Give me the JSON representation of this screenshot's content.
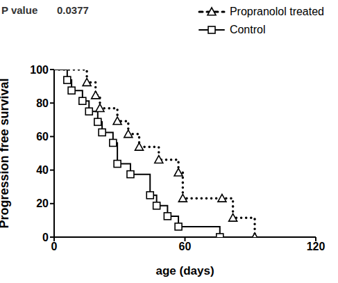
{
  "chart_data": {
    "type": "line",
    "annotations": [
      "P value",
      "0.0377"
    ],
    "x_label": "age (days)",
    "y_label": "Progression free survival",
    "xlim": [
      0,
      120
    ],
    "xticks": [
      0,
      60,
      120
    ],
    "ylim": [
      0,
      100
    ],
    "yticks": [
      0,
      20,
      40,
      60,
      80,
      100
    ],
    "legend": "upper right",
    "series": [
      {
        "name": "Propranolol treated",
        "color": "#000000",
        "marker": "triangle",
        "line_style": "dotted",
        "x": [
          0,
          15,
          19,
          21,
          29,
          34,
          39,
          48,
          57,
          59,
          77,
          82,
          92
        ],
        "values": [
          100,
          92.3,
          84.6,
          76.9,
          69.2,
          61.5,
          53.8,
          46.2,
          38.5,
          23.1,
          23.1,
          11.5,
          0
        ]
      },
      {
        "name": "Control",
        "color": "#000000",
        "marker": "square",
        "line_style": "solid",
        "x": [
          0,
          6,
          8,
          13,
          16,
          20,
          22,
          27,
          29,
          35,
          44,
          47,
          52,
          57,
          76
        ],
        "values": [
          100,
          93.75,
          87.5,
          81.25,
          75,
          68.75,
          62.5,
          56.25,
          43.75,
          37.5,
          25,
          18.75,
          12.5,
          6.25,
          0
        ]
      }
    ]
  }
}
